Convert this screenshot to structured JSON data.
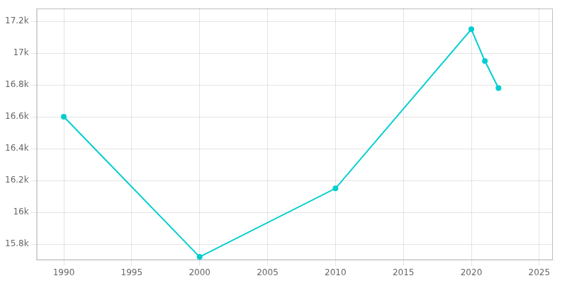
{
  "chart_data": {
    "type": "line",
    "x": [
      1990,
      2000,
      2010,
      2020,
      2021,
      2022
    ],
    "values": [
      16600,
      15720,
      16150,
      17150,
      16950,
      16780
    ],
    "color": "#00CED1",
    "marker": "circle",
    "xlim": [
      1988,
      2026
    ],
    "ylim": [
      15700,
      17280
    ],
    "xticks": [
      1990,
      1995,
      2000,
      2005,
      2010,
      2015,
      2020,
      2025
    ],
    "yticks": [
      {
        "value": 15800,
        "label": "15.8k"
      },
      {
        "value": 16000,
        "label": "16k"
      },
      {
        "value": 16200,
        "label": "16.2k"
      },
      {
        "value": 16400,
        "label": "16.4k"
      },
      {
        "value": 16600,
        "label": "16.6k"
      },
      {
        "value": 16800,
        "label": "16.8k"
      },
      {
        "value": 17000,
        "label": "17k"
      },
      {
        "value": 17200,
        "label": "17.2k"
      }
    ],
    "grid": true
  }
}
